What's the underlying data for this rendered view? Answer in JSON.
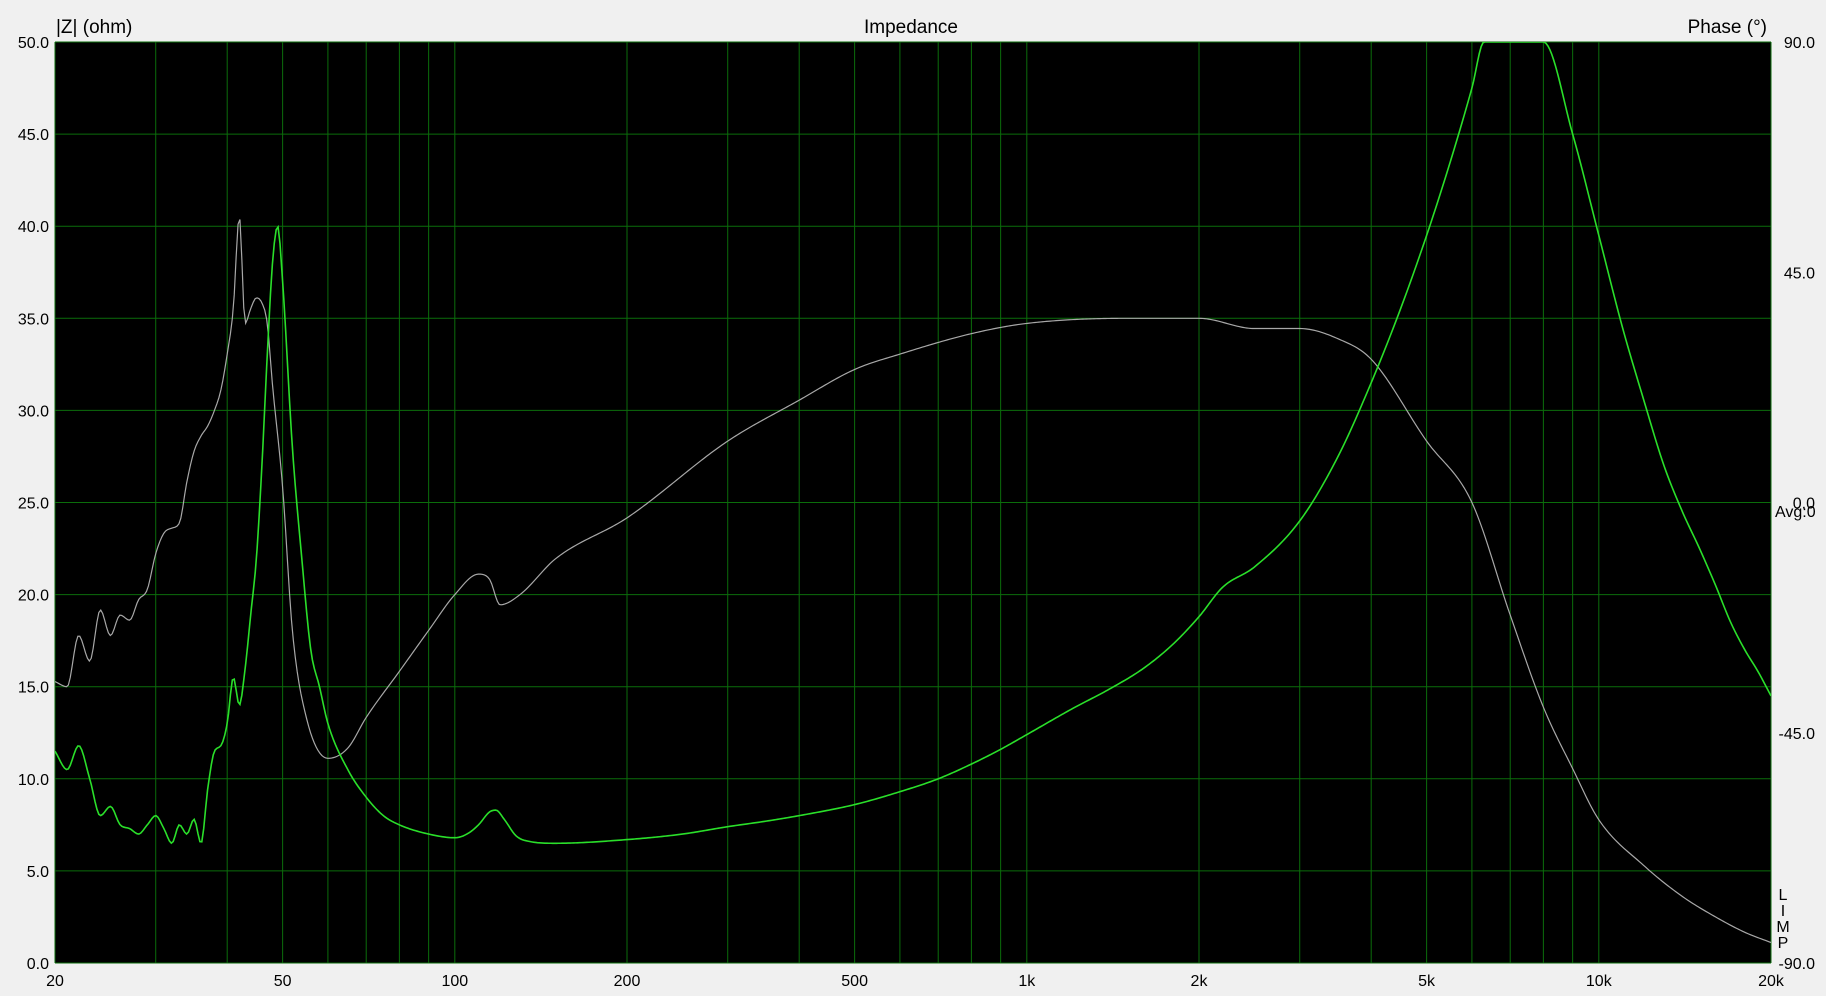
{
  "chart_data": {
    "type": "line",
    "title": "Impedance",
    "xlabel": "",
    "ylabel": "|Z| (ohm)",
    "y2label": "Phase (°)",
    "x_scale": "log",
    "xlim": [
      20,
      20000
    ],
    "ylim": [
      0,
      50
    ],
    "y2lim": [
      -90,
      90
    ],
    "x_ticks": [
      20,
      50,
      100,
      200,
      500,
      1000,
      2000,
      5000,
      10000,
      20000
    ],
    "x_tick_labels": [
      "20",
      "50",
      "100",
      "200",
      "500",
      "1k",
      "2k",
      "5k",
      "10k",
      "20k"
    ],
    "x_grid": [
      20,
      30,
      40,
      50,
      60,
      70,
      80,
      90,
      100,
      200,
      300,
      400,
      500,
      600,
      700,
      800,
      900,
      1000,
      2000,
      3000,
      4000,
      5000,
      6000,
      7000,
      8000,
      9000,
      10000,
      20000
    ],
    "y_ticks": [
      0,
      5,
      10,
      15,
      20,
      25,
      30,
      35,
      40,
      45,
      50
    ],
    "y_tick_labels": [
      "0.0",
      "5.0",
      "10.0",
      "15.0",
      "20.0",
      "25.0",
      "30.0",
      "35.0",
      "40.0",
      "45.0",
      "50.0"
    ],
    "y2_ticks": [
      90,
      45,
      0,
      -45,
      -90
    ],
    "y2_tick_labels": [
      "90.0",
      "45.0",
      "0.0",
      "-45.0",
      "-90.0"
    ],
    "avg_label": "Avg:0",
    "side_letters": [
      "L",
      "I",
      "M",
      "P"
    ],
    "grid": true,
    "colors": {
      "background": "#000000",
      "grid": "#0b6d0b",
      "impedance": "#2adf2a",
      "phase": "#a8a8a8"
    },
    "series": [
      {
        "axis": "left",
        "color": "#2adf2a",
        "points": [
          [
            20,
            11.5
          ],
          [
            21,
            10.5
          ],
          [
            22,
            11.8
          ],
          [
            23,
            10
          ],
          [
            24,
            8
          ],
          [
            25,
            8.5
          ],
          [
            26,
            7.5
          ],
          [
            27,
            7.3
          ],
          [
            28,
            7.0
          ],
          [
            29,
            7.5
          ],
          [
            30,
            8.0
          ],
          [
            31,
            7.3
          ],
          [
            32,
            6.5
          ],
          [
            33,
            7.5
          ],
          [
            34,
            7.0
          ],
          [
            35,
            7.8
          ],
          [
            36,
            6.5
          ],
          [
            37,
            9.5
          ],
          [
            38,
            11.5
          ],
          [
            39,
            11.8
          ],
          [
            40,
            13.0
          ],
          [
            41,
            15.5
          ],
          [
            42,
            14.0
          ],
          [
            43,
            16.0
          ],
          [
            44,
            19.0
          ],
          [
            45,
            22.0
          ],
          [
            46,
            27.0
          ],
          [
            47,
            33.0
          ],
          [
            48,
            38.0
          ],
          [
            49,
            40.0
          ],
          [
            50,
            37.0
          ],
          [
            52,
            28.0
          ],
          [
            54,
            22.0
          ],
          [
            56,
            17.0
          ],
          [
            58,
            15.0
          ],
          [
            60,
            13.0
          ],
          [
            65,
            10.5
          ],
          [
            70,
            9.0
          ],
          [
            75,
            8.0
          ],
          [
            80,
            7.5
          ],
          [
            90,
            7.0
          ],
          [
            100,
            6.8
          ],
          [
            105,
            7.0
          ],
          [
            110,
            7.5
          ],
          [
            115,
            8.2
          ],
          [
            118,
            8.3
          ],
          [
            122,
            7.8
          ],
          [
            128,
            6.9
          ],
          [
            135,
            6.6
          ],
          [
            150,
            6.5
          ],
          [
            200,
            6.7
          ],
          [
            250,
            7.0
          ],
          [
            300,
            7.4
          ],
          [
            350,
            7.7
          ],
          [
            400,
            8.0
          ],
          [
            500,
            8.6
          ],
          [
            600,
            9.3
          ],
          [
            700,
            10.0
          ],
          [
            800,
            10.8
          ],
          [
            900,
            11.6
          ],
          [
            1000,
            12.4
          ],
          [
            1200,
            13.8
          ],
          [
            1400,
            14.9
          ],
          [
            1600,
            16.0
          ],
          [
            1800,
            17.3
          ],
          [
            2000,
            18.8
          ],
          [
            2200,
            20.4
          ],
          [
            2500,
            21.5
          ],
          [
            3000,
            24.0
          ],
          [
            3500,
            27.5
          ],
          [
            4000,
            31.5
          ],
          [
            4500,
            35.5
          ],
          [
            5000,
            39.5
          ],
          [
            5500,
            43.5
          ],
          [
            6000,
            47.5
          ],
          [
            6300,
            50.0
          ],
          [
            8000,
            50.0
          ],
          [
            9000,
            45.0
          ],
          [
            10000,
            39.5
          ],
          [
            11000,
            34.5
          ],
          [
            12000,
            30.5
          ],
          [
            13000,
            27.0
          ],
          [
            14000,
            24.5
          ],
          [
            15000,
            22.5
          ],
          [
            16000,
            20.5
          ],
          [
            17000,
            18.5
          ],
          [
            18000,
            17.0
          ],
          [
            19000,
            15.8
          ],
          [
            20000,
            14.5
          ]
        ]
      },
      {
        "axis": "right",
        "color": "#a8a8a8",
        "points": [
          [
            20,
            -35
          ],
          [
            21,
            -36
          ],
          [
            22,
            -26
          ],
          [
            23,
            -31
          ],
          [
            24,
            -21
          ],
          [
            25,
            -26
          ],
          [
            26,
            -22
          ],
          [
            27,
            -23
          ],
          [
            28,
            -19
          ],
          [
            29,
            -17
          ],
          [
            30,
            -10
          ],
          [
            31,
            -6
          ],
          [
            32,
            -5
          ],
          [
            33,
            -4
          ],
          [
            34,
            4
          ],
          [
            35,
            10
          ],
          [
            36,
            13
          ],
          [
            37,
            15
          ],
          [
            38,
            18
          ],
          [
            39,
            22
          ],
          [
            40,
            29
          ],
          [
            41,
            38
          ],
          [
            42,
            56
          ],
          [
            43,
            35
          ],
          [
            44,
            38
          ],
          [
            45,
            40
          ],
          [
            46,
            39
          ],
          [
            47,
            35
          ],
          [
            48,
            23
          ],
          [
            50,
            3
          ],
          [
            52,
            -25
          ],
          [
            55,
            -42
          ],
          [
            60,
            -50
          ],
          [
            65,
            -48
          ],
          [
            70,
            -42
          ],
          [
            80,
            -33
          ],
          [
            90,
            -25
          ],
          [
            100,
            -18
          ],
          [
            110,
            -14
          ],
          [
            115,
            -15
          ],
          [
            120,
            -20
          ],
          [
            130,
            -18
          ],
          [
            150,
            -11
          ],
          [
            200,
            -3
          ],
          [
            300,
            12
          ],
          [
            400,
            20
          ],
          [
            500,
            26
          ],
          [
            600,
            29
          ],
          [
            800,
            33
          ],
          [
            1000,
            35
          ],
          [
            1500,
            36
          ],
          [
            2000,
            36
          ],
          [
            2500,
            34
          ],
          [
            3000,
            34
          ],
          [
            3500,
            32
          ],
          [
            4000,
            28
          ],
          [
            5000,
            12
          ],
          [
            6000,
            0
          ],
          [
            7000,
            -22
          ],
          [
            8000,
            -40
          ],
          [
            9000,
            -52
          ],
          [
            10000,
            -62
          ],
          [
            12000,
            -71
          ],
          [
            14000,
            -77
          ],
          [
            16000,
            -81
          ],
          [
            18000,
            -84
          ],
          [
            20000,
            -86
          ]
        ]
      }
    ]
  }
}
